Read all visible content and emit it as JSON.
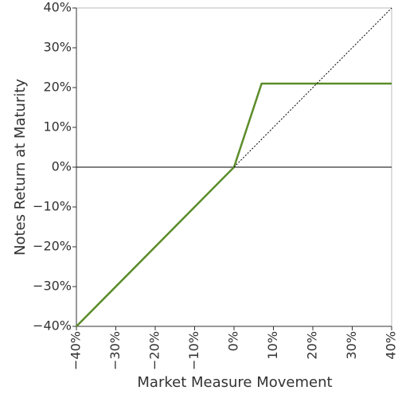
{
  "chart_data": {
    "type": "line",
    "xlabel": "Market Measure Movement",
    "ylabel": "Notes Return at Maturity",
    "series": [
      {
        "color": "#5b8c2a",
        "style": "solid",
        "x": [
          -40,
          0,
          7,
          40
        ],
        "values": [
          -40,
          0,
          21,
          21
        ]
      },
      {
        "color": "#000000",
        "style": "dotted",
        "x": [
          0,
          40
        ],
        "values": [
          0,
          40
        ]
      }
    ],
    "xlim": [
      -40,
      40
    ],
    "ylim": [
      -40,
      40
    ],
    "xticks": [
      {
        "value": -40,
        "label": "−40%"
      },
      {
        "value": -30,
        "label": "−30%"
      },
      {
        "value": -20,
        "label": "−20%"
      },
      {
        "value": -10,
        "label": "−10%"
      },
      {
        "value": 0,
        "label": "0%"
      },
      {
        "value": 10,
        "label": "10%"
      },
      {
        "value": 20,
        "label": "20%"
      },
      {
        "value": 30,
        "label": "30%"
      },
      {
        "value": 40,
        "label": "40%"
      }
    ],
    "yticks": [
      {
        "value": -40,
        "label": "−40%"
      },
      {
        "value": -30,
        "label": "−30%"
      },
      {
        "value": -20,
        "label": "−20%"
      },
      {
        "value": -10,
        "label": "−10%"
      },
      {
        "value": 0,
        "label": "0%"
      },
      {
        "value": 10,
        "label": "10%"
      },
      {
        "value": 20,
        "label": "20%"
      },
      {
        "value": 30,
        "label": "30%"
      },
      {
        "value": 40,
        "label": "40%"
      }
    ],
    "zero_line": true,
    "grid": false
  }
}
